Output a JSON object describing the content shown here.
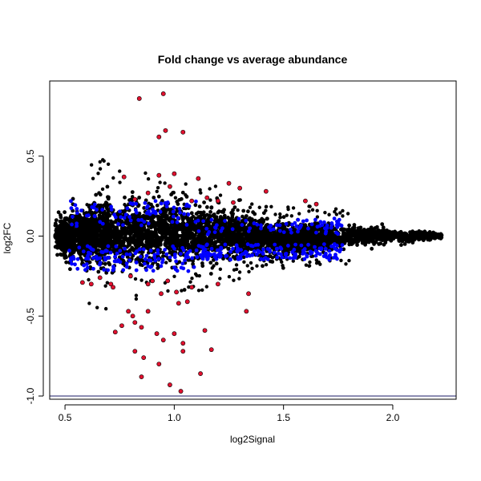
{
  "chart_data": {
    "type": "scatter",
    "title": "Fold change vs average abundance",
    "xlabel": "log2Signal",
    "ylabel": "log2FC",
    "xlim": [
      0.43,
      2.29
    ],
    "ylim": [
      -1.02,
      0.97
    ],
    "xticks": [
      0.5,
      1.0,
      1.5,
      2.0
    ],
    "xtick_labels": [
      "0.5",
      "1.0",
      "1.5",
      "2.0"
    ],
    "yticks": [
      -1.0,
      -0.5,
      0.0,
      0.5
    ],
    "ytick_labels": [
      "-1.0",
      "-0.5",
      "0.0",
      "0.5"
    ],
    "hline": {
      "y": -1.0,
      "color": "#1a1a66"
    },
    "colors": {
      "black": "#000000",
      "blue": "#0000ff",
      "red": "#e0102e"
    },
    "grid": false,
    "density": {
      "description_units": "data",
      "points": [
        [
          0.48,
          0.0
        ],
        [
          0.5,
          0.01
        ],
        [
          0.52,
          -0.02
        ],
        [
          0.55,
          0.02
        ],
        [
          0.58,
          0.0
        ],
        [
          0.6,
          0.01
        ],
        [
          0.62,
          -0.01
        ],
        [
          0.65,
          0.03
        ],
        [
          0.68,
          0.0
        ],
        [
          0.7,
          0.02
        ],
        [
          0.75,
          0.0
        ],
        [
          0.8,
          0.02
        ],
        [
          0.85,
          0.03
        ],
        [
          0.9,
          0.01
        ],
        [
          0.95,
          0.04
        ],
        [
          1.0,
          0.02
        ],
        [
          1.05,
          0.03
        ],
        [
          1.1,
          0.0
        ],
        [
          1.15,
          0.02
        ],
        [
          1.2,
          0.01
        ],
        [
          1.25,
          0.01
        ],
        [
          1.3,
          0.0
        ],
        [
          1.35,
          -0.01
        ],
        [
          1.4,
          -0.01
        ],
        [
          1.45,
          -0.02
        ],
        [
          1.5,
          -0.02
        ],
        [
          1.55,
          -0.02
        ],
        [
          1.6,
          -0.01
        ],
        [
          1.65,
          -0.01
        ],
        [
          1.7,
          -0.01
        ],
        [
          1.75,
          -0.01
        ],
        [
          1.8,
          0.0
        ],
        [
          1.85,
          0.0
        ],
        [
          1.9,
          0.0
        ],
        [
          1.95,
          0.0
        ],
        [
          2.0,
          0.0
        ],
        [
          2.05,
          -0.01
        ],
        [
          2.1,
          0.0
        ],
        [
          2.15,
          0.0
        ],
        [
          2.2,
          0.0
        ]
      ],
      "spread": [
        0.06,
        0.07,
        0.08,
        0.09,
        0.1,
        0.1,
        0.11,
        0.11,
        0.12,
        0.12,
        0.12,
        0.12,
        0.12,
        0.13,
        0.12,
        0.12,
        0.11,
        0.11,
        0.1,
        0.1,
        0.09,
        0.09,
        0.08,
        0.08,
        0.07,
        0.07,
        0.06,
        0.06,
        0.05,
        0.05,
        0.04,
        0.04,
        0.03,
        0.03,
        0.03,
        0.02,
        0.02,
        0.02,
        0.015,
        0.01
      ]
    },
    "red_points": [
      [
        0.95,
        0.89
      ],
      [
        0.84,
        0.86
      ],
      [
        0.96,
        0.66
      ],
      [
        0.93,
        0.62
      ],
      [
        1.04,
        0.65
      ],
      [
        0.77,
        0.37
      ],
      [
        0.93,
        0.38
      ],
      [
        1.0,
        0.39
      ],
      [
        1.11,
        0.36
      ],
      [
        1.25,
        0.33
      ],
      [
        1.3,
        0.3
      ],
      [
        0.98,
        0.31
      ],
      [
        0.88,
        0.27
      ],
      [
        1.42,
        0.28
      ],
      [
        1.6,
        0.22
      ],
      [
        1.65,
        0.2
      ],
      [
        1.15,
        0.24
      ],
      [
        1.2,
        0.22
      ],
      [
        1.27,
        0.21
      ],
      [
        1.08,
        0.22
      ],
      [
        0.82,
        0.23
      ],
      [
        0.71,
        -0.3
      ],
      [
        0.72,
        -0.32
      ],
      [
        0.8,
        -0.25
      ],
      [
        0.9,
        -0.28
      ],
      [
        1.01,
        -0.35
      ],
      [
        0.94,
        -0.36
      ],
      [
        1.06,
        -0.41
      ],
      [
        0.88,
        -0.47
      ],
      [
        0.79,
        -0.47
      ],
      [
        0.81,
        -0.5
      ],
      [
        0.82,
        -0.54
      ],
      [
        0.76,
        -0.56
      ],
      [
        0.73,
        -0.6
      ],
      [
        0.85,
        -0.57
      ],
      [
        0.92,
        -0.61
      ],
      [
        0.95,
        -0.65
      ],
      [
        1.0,
        -0.61
      ],
      [
        0.82,
        -0.72
      ],
      [
        0.86,
        -0.76
      ],
      [
        0.93,
        -0.8
      ],
      [
        0.85,
        -0.88
      ],
      [
        0.98,
        -0.93
      ],
      [
        1.03,
        -0.97
      ],
      [
        1.12,
        -0.86
      ],
      [
        1.04,
        -0.72
      ],
      [
        1.04,
        -0.67
      ],
      [
        1.17,
        -0.71
      ],
      [
        1.14,
        -0.59
      ],
      [
        1.33,
        -0.47
      ],
      [
        1.34,
        -0.36
      ],
      [
        1.08,
        -0.32
      ],
      [
        1.02,
        -0.42
      ],
      [
        1.2,
        -0.3
      ],
      [
        0.66,
        -0.26
      ],
      [
        0.58,
        -0.29
      ],
      [
        0.62,
        -0.3
      ],
      [
        0.88,
        -0.3
      ],
      [
        0.97,
        -0.28
      ]
    ]
  }
}
